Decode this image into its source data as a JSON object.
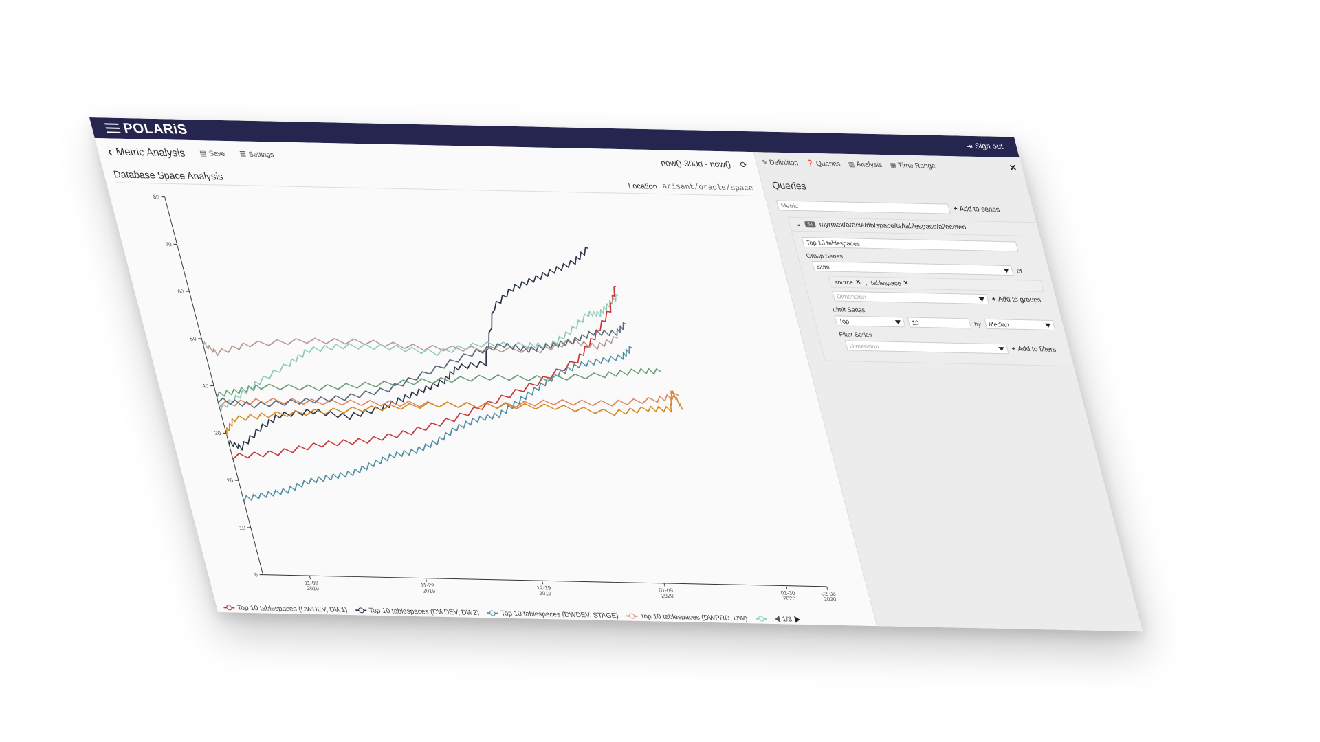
{
  "app": {
    "brand": "POLARiS",
    "signout_label": "Sign out"
  },
  "toolbar": {
    "back_label": "Metric Analysis",
    "save_label": "Save",
    "settings_label": "Settings",
    "time_range": "now()-300d - now()"
  },
  "chart_header": {
    "title": "Database Space Analysis",
    "location_label": "Location",
    "location_value": "arisant/oracle/space"
  },
  "legend": {
    "items": [
      {
        "label": "Top 10 tablespaces (DWDEV, DW1)",
        "color": "#c83737"
      },
      {
        "label": "Top 10 tablespaces (DWDEV, DW2)",
        "color": "#2b3445"
      },
      {
        "label": "Top 10 tablespaces (DWDEV, STAGE)",
        "color": "#4e8ea0"
      },
      {
        "label": "Top 10 tablespaces (DWPRD, DW)",
        "color": "#e08560"
      }
    ],
    "pager": "1/3"
  },
  "panel": {
    "tabs": [
      "Definition",
      "Queries",
      "Analysis",
      "Time Range"
    ],
    "title": "Queries",
    "metric_placeholder": "Metric",
    "add_series_label": "Add to series",
    "query": {
      "badge": "S1",
      "path": "myrmex/oracle/db/space/ts/tablespace/allocated",
      "name_value": "Top 10 tablespaces",
      "group_series_label": "Group Series",
      "group_func": "Sum",
      "of_label": "of",
      "group_dims": [
        "source",
        "tablespace"
      ],
      "dim_separator": ",",
      "dimension_placeholder": "Dimension",
      "add_groups_label": "Add to groups",
      "limit_series_label": "Limit Series",
      "limit_dir": "Top",
      "limit_n": "10",
      "by_label": "by",
      "limit_stat": "Median",
      "filter_series_label": "Filter Series",
      "filter_placeholder": "Dimension",
      "add_filters_label": "Add to filters"
    }
  },
  "chart_data": {
    "type": "line",
    "ylim": [
      0,
      80
    ],
    "y_ticks": [
      0,
      10,
      20,
      30,
      40,
      50,
      60,
      70,
      80
    ],
    "x_ticks": [
      {
        "label": [
          "11-09",
          "2019"
        ],
        "pos": 0
      },
      {
        "label": [
          "11-29",
          "2019"
        ],
        "pos": 20
      },
      {
        "label": [
          "12-19",
          "2019"
        ],
        "pos": 40
      },
      {
        "label": [
          "01-09",
          "2020"
        ],
        "pos": 61
      },
      {
        "label": [
          "01-30",
          "2020"
        ],
        "pos": 82
      },
      {
        "label": [
          "02-06",
          "2020"
        ],
        "pos": 89
      }
    ],
    "x_max": 89,
    "series": [
      {
        "name": "Top 10 tablespaces (DWDEV, DW1)",
        "color": "#c83737",
        "x": [
          -8,
          0,
          8,
          16,
          24,
          32,
          40,
          48,
          56,
          60,
          64,
          66
        ],
        "values": [
          25,
          26,
          28,
          29,
          31,
          34,
          38,
          42,
          47,
          52,
          58,
          63
        ]
      },
      {
        "name": "Top 10 tablespaces (DWDEV, DW2)",
        "color": "#2b3445",
        "x": [
          -8,
          -6,
          -2,
          2,
          8,
          14,
          20,
          24,
          28,
          32,
          35,
          40,
          44,
          48,
          52,
          56,
          60,
          63
        ],
        "values": [
          28,
          27,
          31,
          34,
          35,
          34,
          36,
          38,
          40,
          42,
          45,
          46,
          58,
          62,
          64,
          66,
          68,
          71
        ]
      },
      {
        "name": "Top 10 tablespaces (DWDEV, STAGE)",
        "color": "#4e8ea0",
        "x": [
          -8,
          -4,
          0,
          4,
          8,
          12,
          16,
          20,
          24,
          28,
          32,
          36,
          40,
          44,
          48,
          52,
          56,
          60,
          64,
          66
        ],
        "values": [
          16,
          17,
          18,
          20,
          21,
          22,
          24,
          26,
          27,
          29,
          32,
          34,
          35,
          38,
          41,
          44,
          46,
          47,
          48,
          50
        ]
      },
      {
        "name": "Top 10 tablespaces (DWPRD, DW)",
        "color": "#e08560",
        "x": [
          -8,
          0,
          10,
          20,
          30,
          40,
          50,
          60,
          68,
          72
        ],
        "values": [
          36,
          37,
          37,
          37,
          37,
          37,
          38,
          38,
          39,
          40
        ]
      },
      {
        "name": "",
        "color": "#b79a92",
        "x": [
          -8,
          -6,
          0,
          10,
          20,
          30,
          40,
          50,
          56,
          60,
          64
        ],
        "values": [
          49,
          47,
          49,
          50,
          50,
          49,
          49,
          49,
          51,
          50,
          52
        ]
      },
      {
        "name": "",
        "color": "#8fcab9",
        "x": [
          -8,
          -4,
          0,
          6,
          10,
          16,
          24,
          32,
          40,
          48,
          52,
          56,
          60,
          62,
          64,
          66
        ],
        "values": [
          35,
          38,
          41,
          45,
          48,
          49,
          49,
          48,
          50,
          50,
          50,
          53,
          57,
          57,
          59,
          61
        ]
      },
      {
        "name": "",
        "color": "#6a9e7a",
        "x": [
          -8,
          -4,
          0,
          10,
          20,
          30,
          40,
          50,
          60,
          66,
          70
        ],
        "values": [
          38,
          39,
          40,
          40,
          41,
          42,
          43,
          43,
          44,
          45,
          45
        ]
      },
      {
        "name": "",
        "color": "#d08a20",
        "x": [
          -8,
          -6,
          0,
          10,
          20,
          30,
          40,
          50,
          60,
          66,
          70,
          71,
          72
        ],
        "values": [
          30,
          33,
          34,
          35,
          36,
          37,
          37,
          37,
          36,
          37,
          37,
          41,
          37
        ]
      },
      {
        "name": "",
        "color": "#5a6a7a",
        "x": [
          -8,
          -2,
          6,
          14,
          22,
          30,
          38,
          44,
          48,
          52,
          56,
          60,
          64,
          66
        ],
        "values": [
          37,
          36,
          37,
          38,
          40,
          44,
          48,
          50,
          49,
          50,
          51,
          53,
          53,
          55
        ]
      }
    ]
  }
}
